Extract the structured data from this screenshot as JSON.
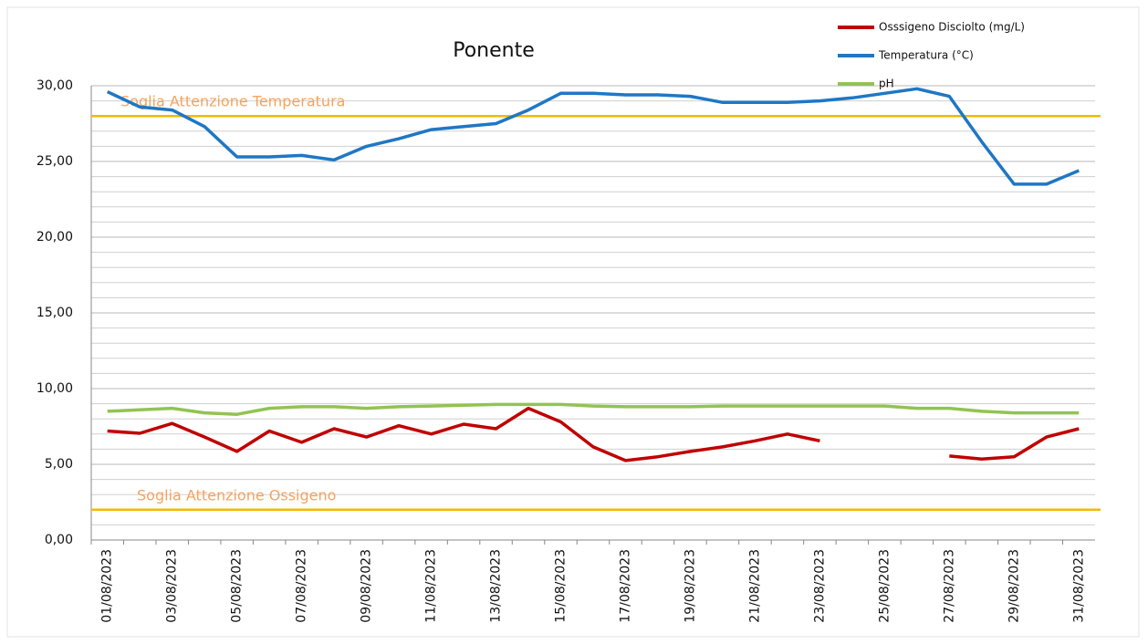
{
  "chart_data": {
    "type": "line",
    "title": "Ponente",
    "categories": [
      "01/08/2023",
      null,
      "03/08/2023",
      null,
      "05/08/2023",
      null,
      "07/08/2023",
      null,
      "09/08/2023",
      null,
      "11/08/2023",
      null,
      "13/08/2023",
      null,
      "15/08/2023",
      null,
      "17/08/2023",
      null,
      "19/08/2023",
      null,
      "21/08/2023",
      null,
      "23/08/2023",
      null,
      "25/08/2023",
      null,
      "27/08/2023",
      null,
      "29/08/2023",
      null,
      "31/08/2023"
    ],
    "series": [
      {
        "name": "Osssigeno Disciolto (mg/L)",
        "color": "#c00000",
        "values": [
          7.2,
          7.05,
          7.7,
          6.8,
          5.85,
          7.2,
          6.45,
          7.35,
          6.8,
          7.55,
          7.0,
          7.65,
          7.35,
          8.7,
          7.8,
          6.15,
          5.25,
          5.5,
          5.85,
          6.15,
          6.55,
          7.0,
          6.55,
          null,
          null,
          null,
          5.55,
          5.35,
          5.5,
          6.8,
          7.35
        ]
      },
      {
        "name": "Temperatura (°C)",
        "color": "#1f77c4",
        "values": [
          29.6,
          28.6,
          28.4,
          27.3,
          25.3,
          25.3,
          25.4,
          25.1,
          26.0,
          26.5,
          27.1,
          27.3,
          27.5,
          28.4,
          29.5,
          29.5,
          29.4,
          29.4,
          29.3,
          28.9,
          28.9,
          28.9,
          29.0,
          29.2,
          29.5,
          29.8,
          29.3,
          26.3,
          23.5,
          23.5,
          24.4
        ]
      },
      {
        "name": "pH",
        "color": "#92c353",
        "values": [
          8.5,
          8.6,
          8.7,
          8.4,
          8.3,
          8.7,
          8.8,
          8.8,
          8.7,
          8.8,
          8.85,
          8.9,
          8.95,
          8.95,
          8.95,
          8.85,
          8.8,
          8.8,
          8.8,
          8.85,
          8.85,
          8.85,
          8.85,
          8.85,
          8.85,
          8.7,
          8.7,
          8.5,
          8.4,
          8.4,
          8.4
        ]
      }
    ],
    "thresholds": [
      {
        "label": "Soglia Attenzione Temperatura",
        "value": 28,
        "color": "#f5b800",
        "label_color": "#f4a460"
      },
      {
        "label": "Soglia Attenzione Ossigeno",
        "value": 2,
        "color": "#f5b800",
        "label_color": "#f4a460"
      }
    ],
    "ylim": [
      0,
      30
    ],
    "yticks": [
      {
        "value": 0,
        "label": "0,00"
      },
      {
        "value": 5,
        "label": "5,00"
      },
      {
        "value": 10,
        "label": "10,00"
      },
      {
        "value": 15,
        "label": "15,00"
      },
      {
        "value": 20,
        "label": "20,00"
      },
      {
        "value": 25,
        "label": "25,00"
      },
      {
        "value": 30,
        "label": "30,00"
      }
    ],
    "minor_yticks": [
      1,
      2,
      3,
      4,
      6,
      7,
      8,
      9,
      11,
      12,
      13,
      14,
      16,
      17,
      18,
      19,
      21,
      22,
      23,
      24,
      26,
      27,
      28,
      29
    ],
    "grid": true,
    "legend": "top-right"
  }
}
